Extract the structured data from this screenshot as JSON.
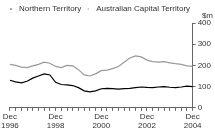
{
  "chart_data": {
    "type": "line",
    "ylabel": "$m",
    "categories": [
      "Dec 1996",
      null,
      null,
      null,
      null,
      null,
      null,
      null,
      "Dec 1998",
      null,
      null,
      null,
      null,
      null,
      null,
      null,
      "Dec 2000",
      null,
      null,
      null,
      null,
      null,
      null,
      null,
      "Dec 2002",
      null,
      null,
      null,
      null,
      null,
      null,
      null,
      "Dec 2004"
    ],
    "series": [
      {
        "name": "Northern Territory",
        "color": "#000000",
        "values": [
          130,
          122,
          118,
          125,
          140,
          150,
          160,
          155,
          120,
          110,
          108,
          105,
          95,
          80,
          75,
          80,
          90,
          92,
          90,
          88,
          90,
          92,
          95,
          98,
          96,
          95,
          98,
          100,
          97,
          95,
          98,
          102,
          100
        ]
      },
      {
        "name": "Australian Capital Territory",
        "color": "#999999",
        "values": [
          205,
          200,
          192,
          190,
          198,
          205,
          215,
          210,
          195,
          190,
          200,
          198,
          180,
          155,
          150,
          160,
          175,
          178,
          185,
          195,
          215,
          235,
          245,
          240,
          225,
          218,
          215,
          218,
          212,
          208,
          205,
          198,
          195
        ]
      }
    ],
    "ylim": [
      0,
      400
    ],
    "yticks": [
      0,
      100,
      200,
      300,
      400
    ],
    "grid": false,
    "legend": "top-left"
  }
}
